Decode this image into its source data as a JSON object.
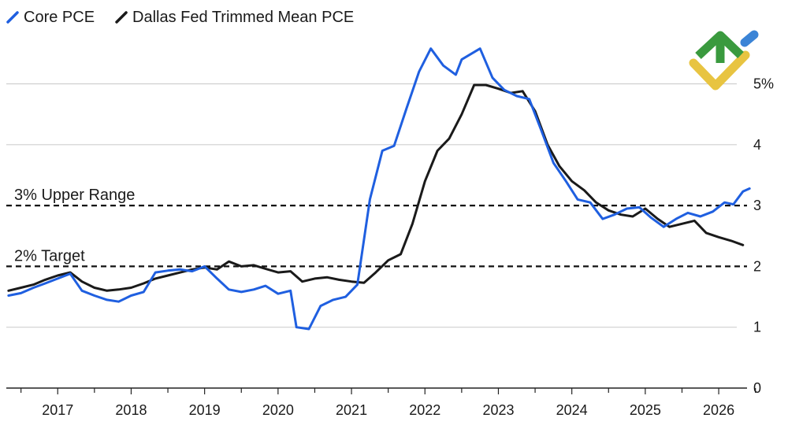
{
  "chart_data": {
    "type": "line",
    "title": "",
    "xlabel": "",
    "ylabel": "",
    "xlim": [
      2016.3,
      2026.6
    ],
    "ylim": [
      0,
      5.6
    ],
    "x_ticks": [
      2017,
      2018,
      2019,
      2020,
      2021,
      2022,
      2023,
      2024,
      2025,
      2026
    ],
    "y_ticks": [
      {
        "value": 0,
        "label": "0"
      },
      {
        "value": 1,
        "label": "1"
      },
      {
        "value": 2,
        "label": "2"
      },
      {
        "value": 3,
        "label": "3"
      },
      {
        "value": 4,
        "label": "4"
      },
      {
        "value": 5,
        "label": "5%"
      }
    ],
    "gridlines": "horizontal",
    "legend_position": "top-left",
    "reference_lines": [
      {
        "value": 3,
        "label": "3% Upper Range"
      },
      {
        "value": 2,
        "label": "2% Target"
      }
    ],
    "series": [
      {
        "name": "Core PCE",
        "color": "#1f5fe0",
        "points": [
          [
            2016.33,
            1.52
          ],
          [
            2016.5,
            1.56
          ],
          [
            2016.67,
            1.65
          ],
          [
            2016.83,
            1.72
          ],
          [
            2017.0,
            1.8
          ],
          [
            2017.17,
            1.88
          ],
          [
            2017.33,
            1.6
          ],
          [
            2017.5,
            1.52
          ],
          [
            2017.67,
            1.45
          ],
          [
            2017.83,
            1.42
          ],
          [
            2018.0,
            1.52
          ],
          [
            2018.17,
            1.58
          ],
          [
            2018.33,
            1.9
          ],
          [
            2018.5,
            1.93
          ],
          [
            2018.67,
            1.95
          ],
          [
            2018.83,
            1.92
          ],
          [
            2019.0,
            2.0
          ],
          [
            2019.17,
            1.8
          ],
          [
            2019.33,
            1.62
          ],
          [
            2019.5,
            1.58
          ],
          [
            2019.67,
            1.62
          ],
          [
            2019.83,
            1.68
          ],
          [
            2020.0,
            1.55
          ],
          [
            2020.17,
            1.6
          ],
          [
            2020.25,
            1.0
          ],
          [
            2020.42,
            0.97
          ],
          [
            2020.58,
            1.35
          ],
          [
            2020.75,
            1.45
          ],
          [
            2020.92,
            1.5
          ],
          [
            2021.08,
            1.7
          ],
          [
            2021.25,
            3.1
          ],
          [
            2021.42,
            3.9
          ],
          [
            2021.58,
            3.98
          ],
          [
            2021.75,
            4.6
          ],
          [
            2021.92,
            5.2
          ],
          [
            2022.08,
            5.58
          ],
          [
            2022.25,
            5.3
          ],
          [
            2022.42,
            5.15
          ],
          [
            2022.5,
            5.4
          ],
          [
            2022.75,
            5.58
          ],
          [
            2022.92,
            5.1
          ],
          [
            2023.08,
            4.9
          ],
          [
            2023.25,
            4.8
          ],
          [
            2023.42,
            4.75
          ],
          [
            2023.58,
            4.25
          ],
          [
            2023.75,
            3.7
          ],
          [
            2023.92,
            3.4
          ],
          [
            2024.08,
            3.1
          ],
          [
            2024.25,
            3.05
          ],
          [
            2024.42,
            2.78
          ],
          [
            2024.58,
            2.85
          ],
          [
            2024.75,
            2.95
          ],
          [
            2024.92,
            2.97
          ],
          [
            2025.08,
            2.8
          ],
          [
            2025.25,
            2.65
          ],
          [
            2025.42,
            2.78
          ],
          [
            2025.58,
            2.88
          ],
          [
            2025.75,
            2.82
          ],
          [
            2025.92,
            2.9
          ],
          [
            2026.08,
            3.05
          ],
          [
            2026.2,
            3.02
          ],
          [
            2026.33,
            3.23
          ],
          [
            2026.42,
            3.28
          ]
        ]
      },
      {
        "name": "Dallas Fed Trimmed Mean PCE",
        "color": "#1a1a1a",
        "points": [
          [
            2016.33,
            1.6
          ],
          [
            2016.5,
            1.65
          ],
          [
            2016.67,
            1.7
          ],
          [
            2016.83,
            1.78
          ],
          [
            2017.0,
            1.85
          ],
          [
            2017.17,
            1.9
          ],
          [
            2017.33,
            1.75
          ],
          [
            2017.5,
            1.65
          ],
          [
            2017.67,
            1.6
          ],
          [
            2017.83,
            1.62
          ],
          [
            2018.0,
            1.65
          ],
          [
            2018.17,
            1.72
          ],
          [
            2018.33,
            1.8
          ],
          [
            2018.5,
            1.85
          ],
          [
            2018.67,
            1.9
          ],
          [
            2018.83,
            1.95
          ],
          [
            2019.0,
            1.98
          ],
          [
            2019.17,
            1.95
          ],
          [
            2019.33,
            2.08
          ],
          [
            2019.5,
            2.0
          ],
          [
            2019.67,
            2.02
          ],
          [
            2019.83,
            1.96
          ],
          [
            2020.0,
            1.9
          ],
          [
            2020.17,
            1.92
          ],
          [
            2020.33,
            1.75
          ],
          [
            2020.5,
            1.8
          ],
          [
            2020.67,
            1.82
          ],
          [
            2020.83,
            1.78
          ],
          [
            2021.0,
            1.75
          ],
          [
            2021.17,
            1.73
          ],
          [
            2021.33,
            1.9
          ],
          [
            2021.5,
            2.1
          ],
          [
            2021.67,
            2.2
          ],
          [
            2021.83,
            2.7
          ],
          [
            2022.0,
            3.4
          ],
          [
            2022.17,
            3.9
          ],
          [
            2022.33,
            4.1
          ],
          [
            2022.5,
            4.5
          ],
          [
            2022.67,
            4.98
          ],
          [
            2022.83,
            4.98
          ],
          [
            2023.0,
            4.92
          ],
          [
            2023.17,
            4.85
          ],
          [
            2023.33,
            4.88
          ],
          [
            2023.5,
            4.55
          ],
          [
            2023.67,
            4.0
          ],
          [
            2023.83,
            3.65
          ],
          [
            2024.0,
            3.4
          ],
          [
            2024.17,
            3.25
          ],
          [
            2024.33,
            3.05
          ],
          [
            2024.5,
            2.92
          ],
          [
            2024.67,
            2.85
          ],
          [
            2024.83,
            2.82
          ],
          [
            2025.0,
            2.95
          ],
          [
            2025.17,
            2.78
          ],
          [
            2025.33,
            2.65
          ],
          [
            2025.5,
            2.7
          ],
          [
            2025.67,
            2.75
          ],
          [
            2025.83,
            2.55
          ],
          [
            2026.0,
            2.48
          ],
          [
            2026.17,
            2.42
          ],
          [
            2026.33,
            2.35
          ]
        ]
      }
    ]
  }
}
